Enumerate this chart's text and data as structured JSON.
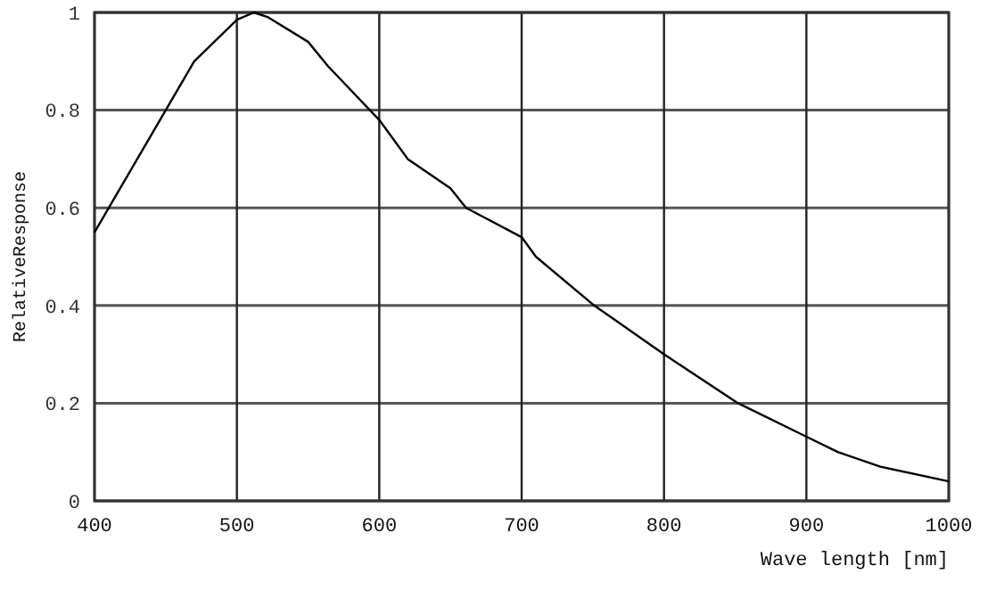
{
  "chart_data": {
    "type": "line",
    "xlabel": "Wave length [nm]",
    "ylabel": "RelativeResponse",
    "x": [
      400,
      470,
      500,
      512,
      522,
      550,
      564,
      600,
      620,
      650,
      661,
      700,
      710,
      751,
      800,
      852,
      901,
      922,
      952,
      1000
    ],
    "series": [
      {
        "color": "#000000",
        "values": [
          0.55,
          0.9,
          0.985,
          1.0,
          0.99,
          0.94,
          0.89,
          0.78,
          0.7,
          0.64,
          0.6,
          0.54,
          0.5,
          0.4,
          0.3,
          0.2,
          0.13,
          0.1,
          0.07,
          0.04
        ]
      }
    ],
    "xlim": [
      400,
      1000
    ],
    "xticks": [
      400,
      500,
      600,
      700,
      800,
      900,
      1000
    ],
    "ylim": [
      0,
      1
    ],
    "yticks": [
      0,
      {
        "value": 0.2,
        "label": "0.2"
      },
      {
        "value": 0.4,
        "label": "0.4"
      },
      {
        "value": 0.6,
        "label": "0.6"
      },
      {
        "value": 0.8,
        "label": "0.8"
      },
      1
    ],
    "grid": true,
    "marker": "none",
    "line_style": "solid"
  }
}
